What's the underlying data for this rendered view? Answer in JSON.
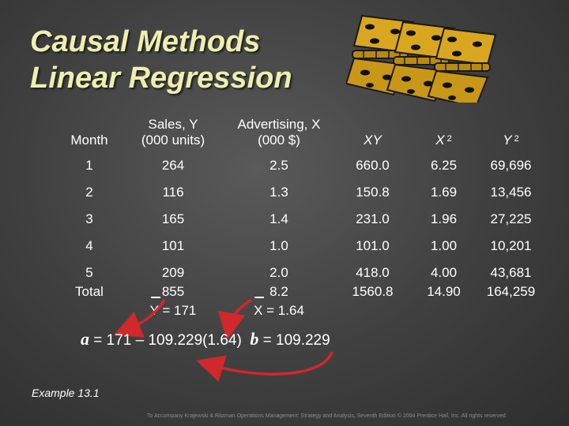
{
  "title": {
    "line1": "Causal Methods",
    "line2": "Linear Regression"
  },
  "table": {
    "headers": {
      "month": "Month",
      "sales": {
        "line1": "Sales, Y",
        "line2": "(000 units)"
      },
      "advertising": {
        "line1": "Advertising, X",
        "line2": "(000 $)"
      },
      "xy": "XY",
      "x2": {
        "base": "X",
        "exp": "2"
      },
      "y2": {
        "base": "Y",
        "exp": "2"
      }
    },
    "rows": [
      {
        "month": "1",
        "sales": "264",
        "adv": "2.5",
        "xy": "660.0",
        "x2": "6.25",
        "y2": "69,696"
      },
      {
        "month": "2",
        "sales": "116",
        "adv": "1.3",
        "xy": "150.8",
        "x2": "1.69",
        "y2": "13,456"
      },
      {
        "month": "3",
        "sales": "165",
        "adv": "1.4",
        "xy": "231.0",
        "x2": "1.96",
        "y2": "27,225"
      },
      {
        "month": "4",
        "sales": "101",
        "adv": "1.0",
        "xy": "101.0",
        "x2": "1.00",
        "y2": "10,201"
      },
      {
        "month": "5",
        "sales": "209",
        "adv": "2.0",
        "xy": "418.0",
        "x2": "4.00",
        "y2": "43,681"
      }
    ],
    "total": {
      "label": "Total",
      "sales": "855",
      "adv": "8.2",
      "xy": "1560.8",
      "x2": "14.90",
      "y2": "164,259",
      "y_mean": "Y = 171",
      "x_mean": "X = 1.64"
    }
  },
  "formula": {
    "a_var": "a",
    "a_expr": "= 171 – 109.229(1.64)",
    "b_var": "b",
    "b_expr": "= 109.229"
  },
  "example": "Example 13.1",
  "footer": "To Accompany Krajewski & Ritzman Operations Management: Strategy and Analysis, Seventh Edition © 2004 Prentice Hall, Inc. All rights reserved.",
  "colors": {
    "title": "#eeeeb0",
    "hinge_leaf": "#d9a71f",
    "hinge_dot": "#111111",
    "arrow": "#d0282c"
  }
}
